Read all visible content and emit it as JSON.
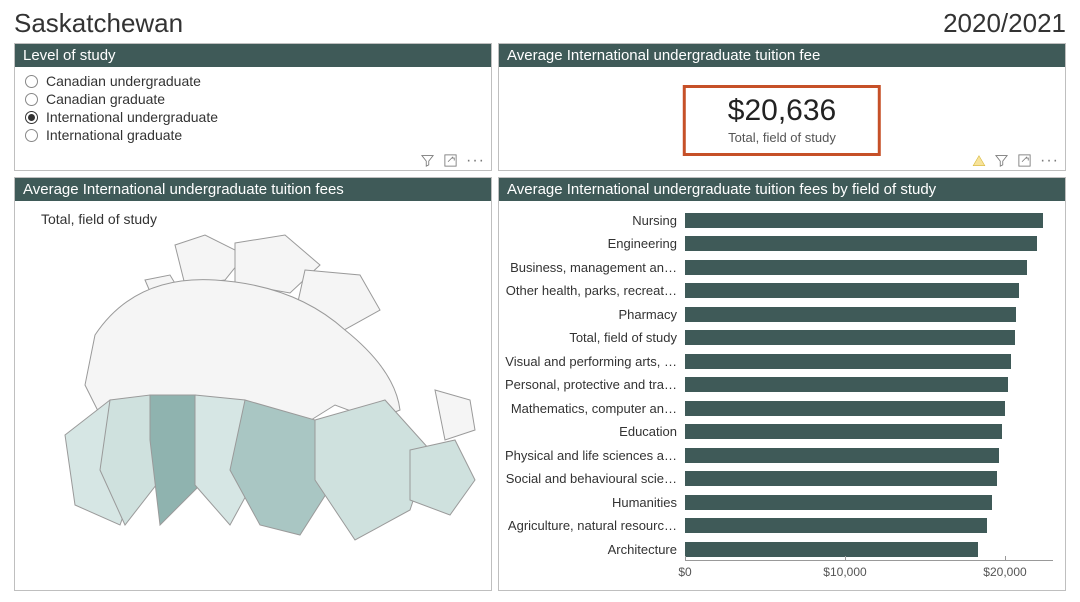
{
  "header": {
    "title": "Saskatchewan",
    "year": "2020/2021"
  },
  "panels": {
    "filter": {
      "title": "Level of study",
      "options": [
        {
          "label": "Canadian undergraduate",
          "selected": false
        },
        {
          "label": "Canadian graduate",
          "selected": false
        },
        {
          "label": "International undergraduate",
          "selected": true
        },
        {
          "label": "International graduate",
          "selected": false
        }
      ]
    },
    "kpi": {
      "title": "Average International undergraduate tuition fee",
      "value": "$20,636",
      "subtitle": "Total, field of study",
      "highlight_border_color": "#c65028",
      "value_fontsize": 30
    },
    "map": {
      "title": "Average International undergraduate tuition fees",
      "caption": "Total, field of study",
      "land_fill": "#f5f5f5",
      "land_stroke": "#9a9a9a",
      "province_colors": {
        "BC": "#d6e6e4",
        "AB": "#cfe1de",
        "SK": "#8fb3af",
        "MB": "#d6e6e4",
        "ON": "#a9c6c3",
        "QC": "#cfe1de",
        "ATL": "#cfe1de"
      }
    },
    "barchart": {
      "title": "Average International undergraduate tuition fees by field of study",
      "type": "bar-horizontal",
      "bar_color": "#3f5a58",
      "xmin": 0,
      "xmax": 23000,
      "ticks": [
        {
          "value": 0,
          "label": "$0"
        },
        {
          "value": 10000,
          "label": "$10,000"
        },
        {
          "value": 20000,
          "label": "$20,000"
        }
      ],
      "label_fontsize": 13,
      "items": [
        {
          "label": "Nursing",
          "value": 22400
        },
        {
          "label": "Engineering",
          "value": 22000
        },
        {
          "label": "Business, management an…",
          "value": 21400
        },
        {
          "label": "Other health, parks, recreat…",
          "value": 20900
        },
        {
          "label": "Pharmacy",
          "value": 20700
        },
        {
          "label": "Total, field of study",
          "value": 20636
        },
        {
          "label": "Visual and performing arts, …",
          "value": 20400
        },
        {
          "label": "Personal, protective and tra…",
          "value": 20200
        },
        {
          "label": "Mathematics, computer an…",
          "value": 20000
        },
        {
          "label": "Education",
          "value": 19800
        },
        {
          "label": "Physical and life sciences a…",
          "value": 19600
        },
        {
          "label": "Social and behavioural scie…",
          "value": 19500
        },
        {
          "label": "Humanities",
          "value": 19200
        },
        {
          "label": "Agriculture, natural resourc…",
          "value": 18900
        },
        {
          "label": "Architecture",
          "value": 18300
        }
      ]
    }
  },
  "colors": {
    "panel_header_bg": "#3f5a58",
    "panel_border": "#bfbfbf",
    "text": "#333333"
  }
}
